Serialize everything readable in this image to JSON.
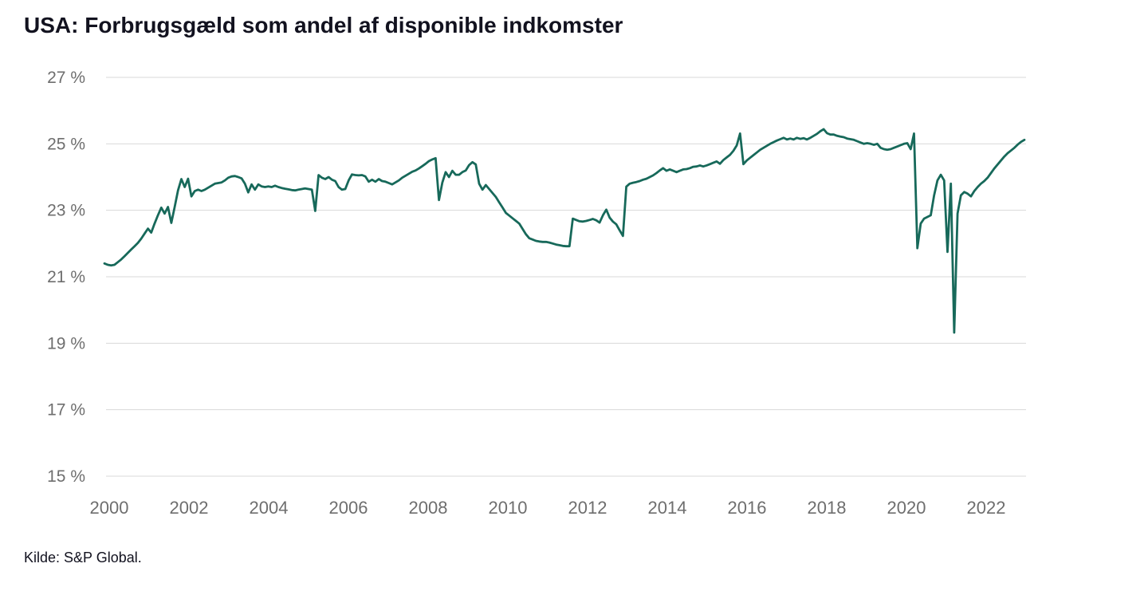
{
  "header": {
    "title": "USA: Forbrugsgæld som andel af disponible indkomster"
  },
  "footer": {
    "source": "Kilde: S&P Global."
  },
  "style": {
    "line_color": "#17695a",
    "grid_color": "#d9d9d9",
    "axis_label_color": "#6e6e6e",
    "title_color": "#12121f",
    "background": "#ffffff"
  },
  "chart_data": {
    "type": "line",
    "title": "USA: Forbrugsgæld som andel af disponible indkomster",
    "xlabel": "",
    "ylabel": "",
    "grid": "horizontal",
    "legend": "none",
    "ylim": [
      15,
      27
    ],
    "xlim": [
      2000,
      2023
    ],
    "y_ticks": [
      27,
      25,
      23,
      21,
      19,
      17,
      15
    ],
    "y_tick_suffix": " %",
    "x_ticks": [
      2000,
      2002,
      2004,
      2006,
      2008,
      2010,
      2012,
      2014,
      2016,
      2018,
      2020,
      2022
    ],
    "series": [
      {
        "name": "Forbrugsgæld som andel af disponible indkomster (USA)",
        "unit": "%",
        "frequency": "monthly",
        "start_year": 2000,
        "end_year": 2022,
        "values": [
          21.4,
          21.36,
          21.34,
          21.36,
          21.44,
          21.52,
          21.62,
          21.72,
          21.82,
          21.92,
          22.02,
          22.15,
          22.3,
          22.45,
          22.33,
          22.6,
          22.85,
          23.08,
          22.9,
          23.1,
          22.62,
          23.1,
          23.6,
          23.94,
          23.7,
          23.95,
          23.42,
          23.58,
          23.62,
          23.58,
          23.62,
          23.68,
          23.74,
          23.8,
          23.82,
          23.84,
          23.9,
          23.98,
          24.02,
          24.03,
          24.0,
          23.96,
          23.8,
          23.54,
          23.78,
          23.62,
          23.78,
          23.72,
          23.7,
          23.72,
          23.7,
          23.74,
          23.7,
          23.67,
          23.65,
          23.63,
          23.61,
          23.6,
          23.62,
          23.64,
          23.66,
          23.64,
          23.62,
          22.98,
          24.06,
          23.98,
          23.94,
          24.0,
          23.92,
          23.88,
          23.7,
          23.62,
          23.64,
          23.9,
          24.08,
          24.06,
          24.05,
          24.06,
          24.02,
          23.86,
          23.92,
          23.86,
          23.94,
          23.88,
          23.86,
          23.82,
          23.78,
          23.84,
          23.9,
          23.98,
          24.04,
          24.1,
          24.16,
          24.2,
          24.26,
          24.33,
          24.4,
          24.48,
          24.53,
          24.57,
          23.31,
          23.83,
          24.15,
          24.0,
          24.19,
          24.07,
          24.07,
          24.15,
          24.2,
          24.36,
          24.45,
          24.38,
          23.8,
          23.62,
          23.76,
          23.64,
          23.52,
          23.4,
          23.24,
          23.08,
          22.92,
          22.84,
          22.76,
          22.68,
          22.6,
          22.44,
          22.28,
          22.16,
          22.12,
          22.08,
          22.06,
          22.05,
          22.05,
          22.03,
          22.0,
          21.97,
          21.95,
          21.93,
          21.92,
          21.92,
          22.75,
          22.71,
          22.67,
          22.66,
          22.68,
          22.71,
          22.74,
          22.7,
          22.63,
          22.85,
          23.02,
          22.78,
          22.66,
          22.58,
          22.4,
          22.23,
          23.71,
          23.8,
          23.83,
          23.85,
          23.88,
          23.92,
          23.95,
          24.0,
          24.05,
          24.12,
          24.2,
          24.27,
          24.19,
          24.23,
          24.19,
          24.15,
          24.19,
          24.23,
          24.24,
          24.27,
          24.31,
          24.32,
          24.35,
          24.32,
          24.35,
          24.39,
          24.43,
          24.47,
          24.4,
          24.51,
          24.59,
          24.67,
          24.79,
          24.95,
          25.31,
          24.39,
          24.5,
          24.58,
          24.66,
          24.74,
          24.82,
          24.88,
          24.94,
          25.0,
          25.05,
          25.1,
          25.14,
          25.18,
          25.13,
          25.16,
          25.13,
          25.18,
          25.15,
          25.17,
          25.13,
          25.18,
          25.24,
          25.3,
          25.38,
          25.44,
          25.32,
          25.28,
          25.28,
          25.24,
          25.22,
          25.2,
          25.16,
          25.14,
          25.12,
          25.08,
          25.04,
          25.0,
          25.02,
          25.0,
          24.97,
          25.0,
          24.88,
          24.84,
          24.82,
          24.84,
          24.88,
          24.92,
          24.96,
          25.0,
          25.02,
          24.84,
          25.31,
          21.86,
          22.6,
          22.75,
          22.8,
          22.85,
          23.45,
          23.9,
          24.07,
          23.9,
          21.75,
          23.8,
          19.32,
          22.9,
          23.45,
          23.55,
          23.5,
          23.42,
          23.58,
          23.7,
          23.8,
          23.88,
          23.98,
          24.12,
          24.26,
          24.38,
          24.5,
          24.62,
          24.72,
          24.8,
          24.88,
          24.98,
          25.06,
          25.12
        ]
      }
    ]
  }
}
